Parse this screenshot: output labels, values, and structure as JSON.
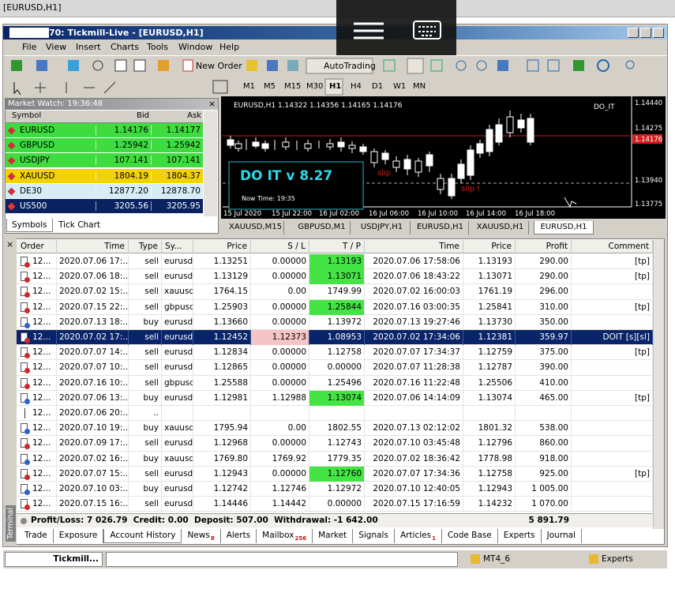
{
  "window_title": "[EURUSD,H1]",
  "app_title": "70: Tickmill-Live - [EURUSD,H1]",
  "menu": [
    "File",
    "View",
    "Insert",
    "Charts",
    "Tools",
    "Window",
    "Help"
  ],
  "toolbar": {
    "new_order": "New Order",
    "autotrading": "AutoTrading",
    "timeframes": [
      "M1",
      "M5",
      "M15",
      "M30",
      "H1",
      "H4",
      "D1",
      "W1",
      "MN"
    ],
    "active_timeframe": 4
  },
  "market_watch": {
    "title": "Market Watch: 19:36:48",
    "columns": [
      "Symbol",
      "Bid",
      "Ask"
    ],
    "rows": [
      {
        "symbol": "EURUSD",
        "bid": "1.14176",
        "ask": "1.14177",
        "color": "#3fdc3f"
      },
      {
        "symbol": "GBPUSD",
        "bid": "1.25942",
        "ask": "1.25942",
        "color": "#3fdc3f"
      },
      {
        "symbol": "USDJPY",
        "bid": "107.141",
        "ask": "107.141",
        "color": "#3fdc3f"
      },
      {
        "symbol": "XAUUSD",
        "bid": "1804.19",
        "ask": "1804.37",
        "color": "#f2d200"
      },
      {
        "symbol": "DE30",
        "bid": "12877.20",
        "ask": "12878.70",
        "color": "#d6ecf7"
      },
      {
        "symbol": "US500",
        "bid": "3205.56",
        "ask": "3205.95",
        "color": "#0a2260"
      }
    ],
    "tabs": [
      "Symbols",
      "Tick Chart"
    ]
  },
  "chart": {
    "header": "EURUSD,H1 1.14322 1.14356 1.14165 1.14176",
    "indicator": "DO_IT",
    "price_labels": [
      "1.14440",
      "1.14275",
      "1.14176",
      "1.13940",
      "1.13775"
    ],
    "time_labels": [
      "15 Jul 2020",
      "15 Jul 22:00",
      "16 Jul 02:00",
      "16 Jul 06:00",
      "16 Jul 10:00",
      "16 Jul 14:00",
      "16 Jul 18:00"
    ],
    "panel_title": "DO IT v 8.27",
    "panel_time": "Now Time: 19:35",
    "slip_labels": [
      "slip",
      "slip !"
    ]
  },
  "chart_tabs": [
    "XAUUSD,M15",
    "GBPUSD,M1",
    "USDJPY,H1",
    "EURUSD,H1",
    "XAUUSD,H1",
    "EURUSD,H1"
  ],
  "active_chart_tab": 5,
  "terminal": {
    "label": "Terminal",
    "columns": [
      "Order",
      "Time",
      "Type",
      "Sy...",
      "Price",
      "S / L",
      "T / P",
      "Time",
      "Price",
      "Profit",
      "Comment"
    ],
    "rows": [
      {
        "cells": [
          "12...",
          "2020.07.06 17:...",
          "sell",
          "eurusd",
          "1.13251",
          "0.00000",
          "1.13193",
          "2020.07.06 17:58:06",
          "1.13193",
          "290.00",
          "[tp]"
        ],
        "highlight": {
          "column": 6,
          "color": "#44e444"
        }
      },
      {
        "cells": [
          "12...",
          "2020.07.06 18:...",
          "sell",
          "eurusd",
          "1.13129",
          "0.00000",
          "1.13071",
          "2020.07.06 18:43:22",
          "1.13071",
          "290.00",
          "[tp]"
        ],
        "highlight": {
          "column": 6,
          "color": "#44e444"
        }
      },
      {
        "cells": [
          "12...",
          "2020.07.02 15:...",
          "sell",
          "xauusd",
          "1764.15",
          "0.00",
          "1749.99",
          "2020.07.02 16:00:03",
          "1761.19",
          "296.00"
        ]
      },
      {
        "cells": [
          "12...",
          "2020.07.15 22:...",
          "sell",
          "gbpusd",
          "1.25903",
          "0.00000",
          "1.25844",
          "2020.07.16 03:00:35",
          "1.25841",
          "310.00",
          "[tp]"
        ],
        "highlight": {
          "column": 6,
          "color": "#44e444"
        }
      },
      {
        "cells": [
          "12...",
          "2020.07.13 18:...",
          "buy",
          "eurusd",
          "1.13660",
          "0.00000",
          "1.13972",
          "2020.07.13 19:27:46",
          "1.13730",
          "350.00"
        ]
      },
      {
        "cells": [
          "12...",
          "2020.07.02 17:...",
          "sell",
          "eurusd",
          "1.12452",
          "1.12373",
          "1.08953",
          "2020.07.02 17:34:06",
          "1.12381",
          "359.97",
          "DOIT [s][sl]"
        ],
        "selected": true,
        "highlight": {
          "column": 5,
          "color": "#f6c4c4"
        }
      },
      {
        "cells": [
          "12...",
          "2020.07.07 14:...",
          "sell",
          "eurusd",
          "1.12834",
          "0.00000",
          "1.12758",
          "2020.07.07 17:34:37",
          "1.12759",
          "375.00",
          "[tp]"
        ]
      },
      {
        "cells": [
          "12...",
          "2020.07.07 10:...",
          "sell",
          "eurusd",
          "1.12865",
          "0.00000",
          "0.00000",
          "2020.07.07 11:28:38",
          "1.12787",
          "390.00"
        ]
      },
      {
        "cells": [
          "12...",
          "2020.07.16 10:...",
          "sell",
          "gbpusd",
          "1.25588",
          "0.00000",
          "1.25496",
          "2020.07.16 11:22:48",
          "1.25506",
          "410.00"
        ]
      },
      {
        "cells": [
          "12...",
          "2020.07.06 13:...",
          "buy",
          "eurusd",
          "1.12981",
          "1.12988",
          "1.13074",
          "2020.07.06 14:14:09",
          "1.13074",
          "465.00",
          "[tp]"
        ],
        "highlight": {
          "column": 6,
          "color": "#44e444"
        }
      },
      {
        "cells": [
          "12...",
          "2020.07.06 20:...",
          ".."
        ]
      },
      {
        "cells": [
          "12...",
          "2020.07.10 19:...",
          "buy",
          "xauusd",
          "1795.94",
          "0.00",
          "1802.55",
          "2020.07.13 02:12:02",
          "1801.32",
          "538.00"
        ]
      },
      {
        "cells": [
          "12...",
          "2020.07.09 17:...",
          "sell",
          "eurusd",
          "1.12968",
          "0.00000",
          "1.12743",
          "2020.07.10 03:45:48",
          "1.12796",
          "860.00"
        ]
      },
      {
        "cells": [
          "12...",
          "2020.07.02 16:...",
          "buy",
          "xauusd",
          "1769.80",
          "1769.92",
          "1779.35",
          "2020.07.02 18:36:42",
          "1778.98",
          "918.00"
        ]
      },
      {
        "cells": [
          "12...",
          "2020.07.07 15:...",
          "sell",
          "eurusd",
          "1.12943",
          "0.00000",
          "1.12760",
          "2020.07.07 17:34:36",
          "1.12758",
          "925.00",
          "[tp]"
        ],
        "highlight": {
          "column": 6,
          "color": "#44e444"
        }
      },
      {
        "cells": [
          "12...",
          "2020.07.10 03:...",
          "buy",
          "eurusd",
          "1.12742",
          "1.12746",
          "1.12972",
          "2020.07.10 12:40:05",
          "1.12943",
          "1 005.00"
        ]
      },
      {
        "cells": [
          "12...",
          "2020.07.15 16:...",
          "sell",
          "eurusd",
          "1.14446",
          "1.14442",
          "0.00000",
          "2020.07.15 17:16:59",
          "1.14232",
          "1 070.00"
        ]
      }
    ],
    "summary": "Profit/Loss: 7 026.79  Credit: 0.00  Deposit: 507.00  Withdrawal: -1 642.00",
    "total": "5 891.79",
    "tabs": [
      {
        "label": "Trade"
      },
      {
        "label": "Exposure"
      },
      {
        "label": "Account History"
      },
      {
        "label": "News",
        "badge": "8"
      },
      {
        "label": "Alerts"
      },
      {
        "label": "Mailbox",
        "badge": "256"
      },
      {
        "label": "Market"
      },
      {
        "label": "Signals"
      },
      {
        "label": "Articles",
        "badge": "1"
      },
      {
        "label": "Code Base"
      },
      {
        "label": "Experts"
      },
      {
        "label": "Journal"
      }
    ],
    "active_tab": 2
  },
  "taskbar": {
    "app": "Tickmill...",
    "folder": "MT4_6",
    "experts": "Experts"
  }
}
